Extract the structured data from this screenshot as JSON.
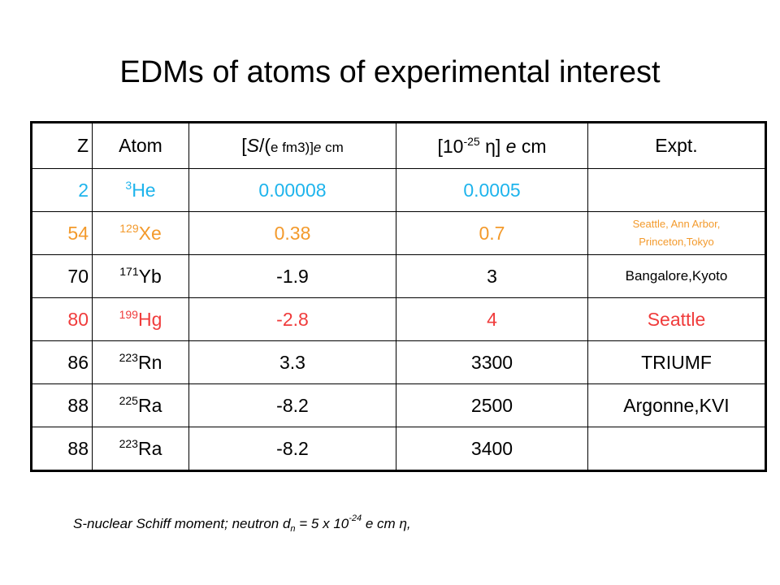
{
  "title": "EDMs of atoms of experimental interest",
  "table": {
    "header": [
      [
        "Z"
      ],
      [
        "Atom"
      ],
      [
        "[",
        "S",
        "/(",
        "e fm3)]",
        "e",
        " cm"
      ],
      [
        "[10",
        "-25",
        " η] ",
        "e",
        " cm"
      ],
      [
        "Expt."
      ]
    ],
    "rows": [
      {
        "color": "#1eb4ec",
        "z": 2,
        "mass": "3",
        "symbol": "He",
        "s": 8e-05,
        "eta": 0.0005,
        "expt": null
      },
      {
        "color": "#f39a2c",
        "z": 54,
        "mass": "129",
        "symbol": "Xe",
        "s": 0.38,
        "eta": 0.7,
        "expt": "Seattle, Ann Arbor, Princeton,Tokyo"
      },
      {
        "color": "#000000",
        "z": 70,
        "mass": "171",
        "symbol": "Yb",
        "s": -1.9,
        "eta": 3,
        "expt": "Bangalore,Kyoto"
      },
      {
        "color": "#f03c3c",
        "z": 80,
        "mass": "199",
        "symbol": "Hg",
        "s": -2.8,
        "eta": 4,
        "expt": "Seattle"
      },
      {
        "color": "#000000",
        "z": 86,
        "mass": "223",
        "symbol": "Rn",
        "s": 3.3,
        "eta": 3300,
        "expt": "TRIUMF"
      },
      {
        "color": "#000000",
        "z": 88,
        "mass": "225",
        "symbol": "Ra",
        "s": -8.2,
        "eta": 2500,
        "expt": "Argonne,KVI"
      },
      {
        "color": "#000000",
        "z": 88,
        "mass": "223",
        "symbol": "Ra",
        "s": -8.2,
        "eta": 3400,
        "expt": null
      }
    ]
  },
  "footnote": [
    "S-nuclear Schiff moment; neutron d",
    "n",
    " = 5 x 10",
    "-24",
    " e cm ",
    "η",
    ","
  ]
}
